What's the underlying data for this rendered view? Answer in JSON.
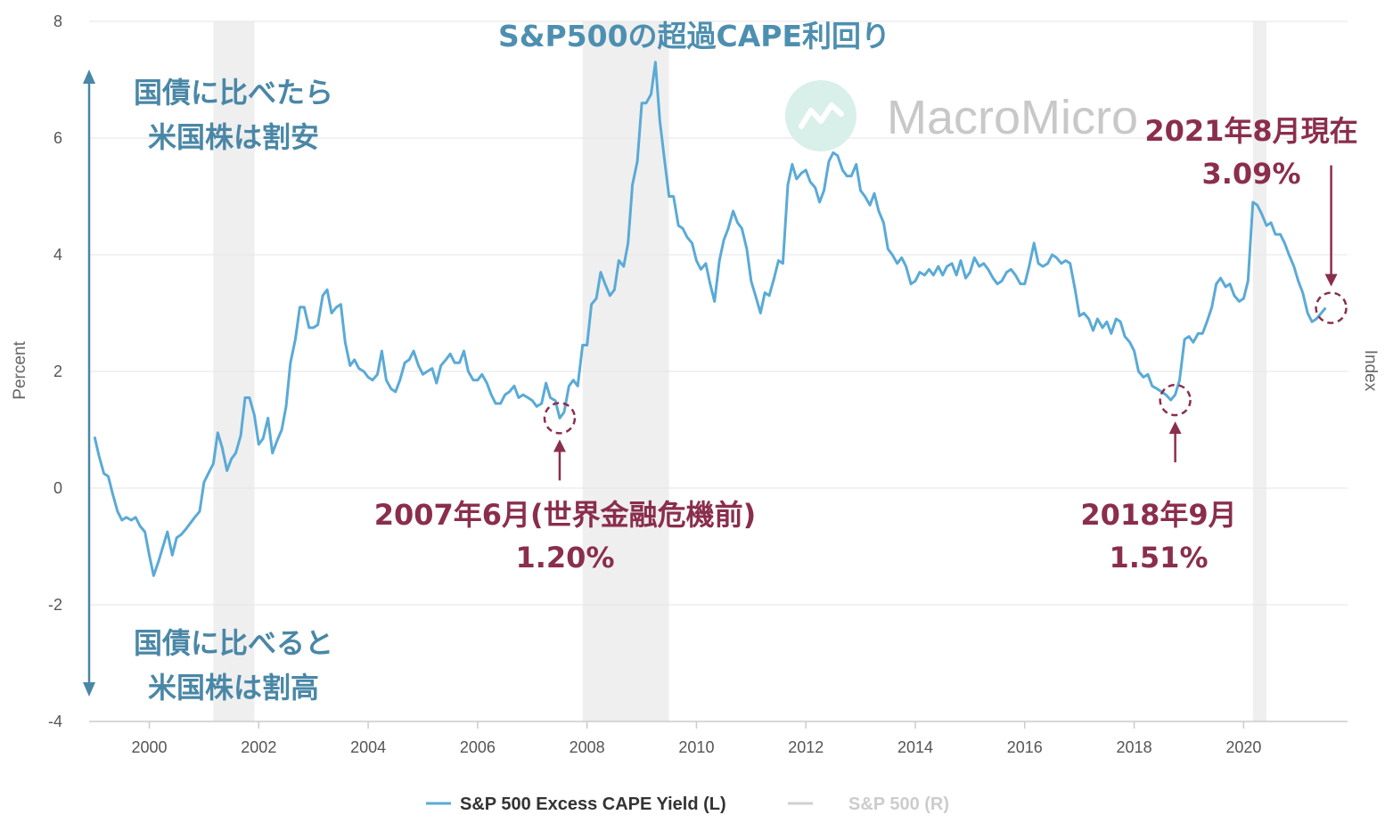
{
  "chart_data": {
    "type": "line",
    "title": "S&P500の超過CAPE利回り",
    "ylabel_left": "Percent",
    "ylabel_right": "Index",
    "ylim": [
      -4,
      8
    ],
    "yticks": [
      -4,
      -2,
      0,
      2,
      4,
      6,
      8
    ],
    "ytick_labels": [
      "-4",
      "-2",
      "0",
      "2",
      "4",
      "6",
      "8"
    ],
    "xlim": [
      1998.9,
      2021.9
    ],
    "xticks": [
      2000,
      2002,
      2004,
      2006,
      2008,
      2010,
      2012,
      2014,
      2016,
      2018,
      2020
    ],
    "xtick_labels": [
      "2000",
      "2002",
      "2004",
      "2006",
      "2008",
      "2010",
      "2012",
      "2014",
      "2016",
      "2018",
      "2020"
    ],
    "grid": true,
    "recessions": [
      [
        2001.17,
        2001.92
      ],
      [
        2007.92,
        2009.5
      ],
      [
        2020.17,
        2020.42
      ]
    ],
    "series": [
      {
        "name": "S&P 500 Excess CAPE Yield (L)",
        "color": "#5aaad6",
        "points": [
          [
            1999.0,
            0.88
          ],
          [
            1999.08,
            0.55
          ],
          [
            1999.17,
            0.25
          ],
          [
            1999.25,
            0.2
          ],
          [
            1999.33,
            -0.1
          ],
          [
            1999.42,
            -0.4
          ],
          [
            1999.5,
            -0.55
          ],
          [
            1999.58,
            -0.5
          ],
          [
            1999.67,
            -0.55
          ],
          [
            1999.75,
            -0.5
          ],
          [
            1999.83,
            -0.65
          ],
          [
            1999.92,
            -0.75
          ],
          [
            2000.0,
            -1.15
          ],
          [
            2000.08,
            -1.5
          ],
          [
            2000.17,
            -1.25
          ],
          [
            2000.25,
            -1.0
          ],
          [
            2000.33,
            -0.75
          ],
          [
            2000.42,
            -1.15
          ],
          [
            2000.5,
            -0.85
          ],
          [
            2000.58,
            -0.8
          ],
          [
            2000.67,
            -0.7
          ],
          [
            2000.75,
            -0.6
          ],
          [
            2000.83,
            -0.5
          ],
          [
            2000.92,
            -0.4
          ],
          [
            2001.0,
            0.1
          ],
          [
            2001.08,
            0.25
          ],
          [
            2001.17,
            0.42
          ],
          [
            2001.25,
            0.95
          ],
          [
            2001.33,
            0.7
          ],
          [
            2001.42,
            0.3
          ],
          [
            2001.5,
            0.5
          ],
          [
            2001.58,
            0.6
          ],
          [
            2001.67,
            0.9
          ],
          [
            2001.75,
            1.55
          ],
          [
            2001.83,
            1.55
          ],
          [
            2001.92,
            1.25
          ],
          [
            2002.0,
            0.75
          ],
          [
            2002.08,
            0.85
          ],
          [
            2002.17,
            1.2
          ],
          [
            2002.25,
            0.6
          ],
          [
            2002.33,
            0.8
          ],
          [
            2002.42,
            1.0
          ],
          [
            2002.5,
            1.4
          ],
          [
            2002.58,
            2.15
          ],
          [
            2002.67,
            2.55
          ],
          [
            2002.75,
            3.1
          ],
          [
            2002.83,
            3.1
          ],
          [
            2002.92,
            2.75
          ],
          [
            2003.0,
            2.75
          ],
          [
            2003.08,
            2.8
          ],
          [
            2003.17,
            3.3
          ],
          [
            2003.25,
            3.4
          ],
          [
            2003.33,
            3.0
          ],
          [
            2003.42,
            3.1
          ],
          [
            2003.5,
            3.15
          ],
          [
            2003.58,
            2.5
          ],
          [
            2003.67,
            2.1
          ],
          [
            2003.75,
            2.2
          ],
          [
            2003.83,
            2.05
          ],
          [
            2003.92,
            2.0
          ],
          [
            2004.0,
            1.9
          ],
          [
            2004.08,
            1.85
          ],
          [
            2004.17,
            1.95
          ],
          [
            2004.25,
            2.35
          ],
          [
            2004.33,
            1.85
          ],
          [
            2004.42,
            1.7
          ],
          [
            2004.5,
            1.65
          ],
          [
            2004.58,
            1.85
          ],
          [
            2004.67,
            2.15
          ],
          [
            2004.75,
            2.2
          ],
          [
            2004.83,
            2.35
          ],
          [
            2004.92,
            2.1
          ],
          [
            2005.0,
            1.95
          ],
          [
            2005.08,
            2.0
          ],
          [
            2005.17,
            2.05
          ],
          [
            2005.25,
            1.8
          ],
          [
            2005.33,
            2.1
          ],
          [
            2005.42,
            2.2
          ],
          [
            2005.5,
            2.3
          ],
          [
            2005.58,
            2.15
          ],
          [
            2005.67,
            2.15
          ],
          [
            2005.75,
            2.35
          ],
          [
            2005.83,
            2.0
          ],
          [
            2005.92,
            1.85
          ],
          [
            2006.0,
            1.85
          ],
          [
            2006.08,
            1.95
          ],
          [
            2006.17,
            1.8
          ],
          [
            2006.25,
            1.6
          ],
          [
            2006.33,
            1.45
          ],
          [
            2006.42,
            1.45
          ],
          [
            2006.5,
            1.6
          ],
          [
            2006.58,
            1.65
          ],
          [
            2006.67,
            1.75
          ],
          [
            2006.75,
            1.55
          ],
          [
            2006.83,
            1.6
          ],
          [
            2006.92,
            1.55
          ],
          [
            2007.0,
            1.5
          ],
          [
            2007.08,
            1.4
          ],
          [
            2007.17,
            1.45
          ],
          [
            2007.25,
            1.8
          ],
          [
            2007.33,
            1.55
          ],
          [
            2007.42,
            1.5
          ],
          [
            2007.5,
            1.2
          ],
          [
            2007.58,
            1.3
          ],
          [
            2007.67,
            1.75
          ],
          [
            2007.75,
            1.85
          ],
          [
            2007.83,
            1.75
          ],
          [
            2007.92,
            2.45
          ],
          [
            2008.0,
            2.45
          ],
          [
            2008.08,
            3.15
          ],
          [
            2008.17,
            3.25
          ],
          [
            2008.25,
            3.7
          ],
          [
            2008.33,
            3.5
          ],
          [
            2008.42,
            3.3
          ],
          [
            2008.5,
            3.4
          ],
          [
            2008.58,
            3.9
          ],
          [
            2008.67,
            3.8
          ],
          [
            2008.75,
            4.2
          ],
          [
            2008.83,
            5.2
          ],
          [
            2008.92,
            5.6
          ],
          [
            2009.0,
            6.6
          ],
          [
            2009.08,
            6.6
          ],
          [
            2009.17,
            6.75
          ],
          [
            2009.25,
            7.3
          ],
          [
            2009.33,
            6.3
          ],
          [
            2009.42,
            5.6
          ],
          [
            2009.5,
            5.0
          ],
          [
            2009.58,
            5.0
          ],
          [
            2009.67,
            4.5
          ],
          [
            2009.75,
            4.45
          ],
          [
            2009.83,
            4.3
          ],
          [
            2009.92,
            4.2
          ],
          [
            2010.0,
            3.9
          ],
          [
            2010.08,
            3.75
          ],
          [
            2010.17,
            3.85
          ],
          [
            2010.25,
            3.5
          ],
          [
            2010.33,
            3.2
          ],
          [
            2010.42,
            3.9
          ],
          [
            2010.5,
            4.25
          ],
          [
            2010.58,
            4.45
          ],
          [
            2010.67,
            4.75
          ],
          [
            2010.75,
            4.55
          ],
          [
            2010.83,
            4.45
          ],
          [
            2010.92,
            4.1
          ],
          [
            2011.0,
            3.55
          ],
          [
            2011.08,
            3.3
          ],
          [
            2011.17,
            3.0
          ],
          [
            2011.25,
            3.35
          ],
          [
            2011.33,
            3.3
          ],
          [
            2011.42,
            3.6
          ],
          [
            2011.5,
            3.9
          ],
          [
            2011.58,
            3.85
          ],
          [
            2011.67,
            5.2
          ],
          [
            2011.75,
            5.55
          ],
          [
            2011.83,
            5.3
          ],
          [
            2011.92,
            5.4
          ],
          [
            2012.0,
            5.45
          ],
          [
            2012.08,
            5.25
          ],
          [
            2012.17,
            5.15
          ],
          [
            2012.25,
            4.9
          ],
          [
            2012.33,
            5.1
          ],
          [
            2012.42,
            5.6
          ],
          [
            2012.5,
            5.75
          ],
          [
            2012.58,
            5.7
          ],
          [
            2012.67,
            5.45
          ],
          [
            2012.75,
            5.35
          ],
          [
            2012.83,
            5.35
          ],
          [
            2012.92,
            5.55
          ],
          [
            2013.0,
            5.1
          ],
          [
            2013.08,
            5.0
          ],
          [
            2013.17,
            4.85
          ],
          [
            2013.25,
            5.05
          ],
          [
            2013.33,
            4.75
          ],
          [
            2013.42,
            4.55
          ],
          [
            2013.5,
            4.1
          ],
          [
            2013.58,
            4.0
          ],
          [
            2013.67,
            3.85
          ],
          [
            2013.75,
            3.95
          ],
          [
            2013.83,
            3.8
          ],
          [
            2013.92,
            3.5
          ],
          [
            2014.0,
            3.55
          ],
          [
            2014.08,
            3.7
          ],
          [
            2014.17,
            3.65
          ],
          [
            2014.25,
            3.75
          ],
          [
            2014.33,
            3.65
          ],
          [
            2014.42,
            3.8
          ],
          [
            2014.5,
            3.65
          ],
          [
            2014.58,
            3.8
          ],
          [
            2014.67,
            3.85
          ],
          [
            2014.75,
            3.65
          ],
          [
            2014.83,
            3.9
          ],
          [
            2014.92,
            3.6
          ],
          [
            2015.0,
            3.7
          ],
          [
            2015.08,
            3.95
          ],
          [
            2015.17,
            3.8
          ],
          [
            2015.25,
            3.85
          ],
          [
            2015.33,
            3.75
          ],
          [
            2015.42,
            3.6
          ],
          [
            2015.5,
            3.5
          ],
          [
            2015.58,
            3.55
          ],
          [
            2015.67,
            3.7
          ],
          [
            2015.75,
            3.75
          ],
          [
            2015.83,
            3.65
          ],
          [
            2015.92,
            3.5
          ],
          [
            2016.0,
            3.5
          ],
          [
            2016.08,
            3.8
          ],
          [
            2016.17,
            4.2
          ],
          [
            2016.25,
            3.85
          ],
          [
            2016.33,
            3.8
          ],
          [
            2016.42,
            3.85
          ],
          [
            2016.5,
            4.0
          ],
          [
            2016.58,
            3.95
          ],
          [
            2016.67,
            3.85
          ],
          [
            2016.75,
            3.9
          ],
          [
            2016.83,
            3.85
          ],
          [
            2016.92,
            3.4
          ],
          [
            2017.0,
            2.95
          ],
          [
            2017.08,
            3.0
          ],
          [
            2017.17,
            2.9
          ],
          [
            2017.25,
            2.7
          ],
          [
            2017.33,
            2.9
          ],
          [
            2017.42,
            2.75
          ],
          [
            2017.5,
            2.85
          ],
          [
            2017.58,
            2.65
          ],
          [
            2017.67,
            2.9
          ],
          [
            2017.75,
            2.85
          ],
          [
            2017.83,
            2.6
          ],
          [
            2017.92,
            2.5
          ],
          [
            2018.0,
            2.35
          ],
          [
            2018.08,
            2.0
          ],
          [
            2018.17,
            1.9
          ],
          [
            2018.25,
            1.95
          ],
          [
            2018.33,
            1.75
          ],
          [
            2018.42,
            1.7
          ],
          [
            2018.5,
            1.65
          ],
          [
            2018.58,
            1.6
          ],
          [
            2018.67,
            1.51
          ],
          [
            2018.75,
            1.6
          ],
          [
            2018.83,
            1.85
          ],
          [
            2018.92,
            2.55
          ],
          [
            2019.0,
            2.6
          ],
          [
            2019.08,
            2.5
          ],
          [
            2019.17,
            2.65
          ],
          [
            2019.25,
            2.65
          ],
          [
            2019.33,
            2.85
          ],
          [
            2019.42,
            3.1
          ],
          [
            2019.5,
            3.5
          ],
          [
            2019.58,
            3.6
          ],
          [
            2019.67,
            3.45
          ],
          [
            2019.75,
            3.5
          ],
          [
            2019.83,
            3.3
          ],
          [
            2019.92,
            3.2
          ],
          [
            2020.0,
            3.25
          ],
          [
            2020.08,
            3.55
          ],
          [
            2020.17,
            4.9
          ],
          [
            2020.25,
            4.85
          ],
          [
            2020.33,
            4.7
          ],
          [
            2020.42,
            4.5
          ],
          [
            2020.5,
            4.55
          ],
          [
            2020.58,
            4.35
          ],
          [
            2020.67,
            4.35
          ],
          [
            2020.75,
            4.2
          ],
          [
            2020.83,
            4.0
          ],
          [
            2020.92,
            3.8
          ],
          [
            2021.0,
            3.55
          ],
          [
            2021.08,
            3.35
          ],
          [
            2021.17,
            3.0
          ],
          [
            2021.25,
            2.85
          ],
          [
            2021.33,
            2.9
          ],
          [
            2021.42,
            3.0
          ],
          [
            2021.5,
            3.09
          ]
        ]
      },
      {
        "name": "S&P 500 (R)",
        "color": "#d0d0d0",
        "points": []
      }
    ],
    "annotations": [
      {
        "x": 2007.5,
        "y": 1.2,
        "lines": [
          "2007年6月(世界金融危機前)",
          "1.20%"
        ],
        "arrow": "up"
      },
      {
        "x": 2018.75,
        "y": 1.51,
        "lines": [
          "2018年9月",
          "1.51%"
        ],
        "arrow": "up"
      },
      {
        "x": 2021.6,
        "y": 3.09,
        "lines": [
          "2021年8月現在",
          "3.09%"
        ],
        "arrow": "down"
      }
    ],
    "side_notes": {
      "top": [
        "国債に比べたら",
        "米国株は割安"
      ],
      "bottom": [
        "国債に比べると",
        "米国株は割高"
      ]
    },
    "watermark": "MacroMicro",
    "legend": "bottom-center"
  }
}
